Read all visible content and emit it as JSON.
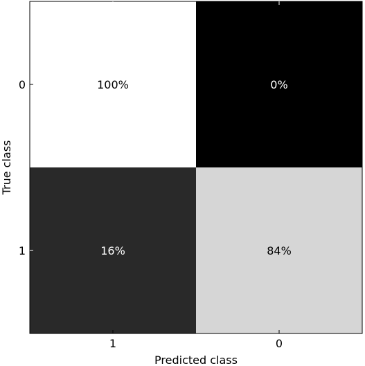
{
  "chart_data": {
    "type": "heatmap",
    "xlabel": "Predicted class",
    "ylabel": "True class",
    "x_categories": [
      "1",
      "0"
    ],
    "y_categories": [
      "0",
      "1"
    ],
    "values": [
      [
        100,
        0
      ],
      [
        16,
        84
      ]
    ],
    "cell_labels": [
      [
        "100%",
        "0%"
      ],
      [
        "16%",
        "84%"
      ]
    ],
    "colormap": "grayscale",
    "value_range": [
      0,
      100
    ]
  }
}
